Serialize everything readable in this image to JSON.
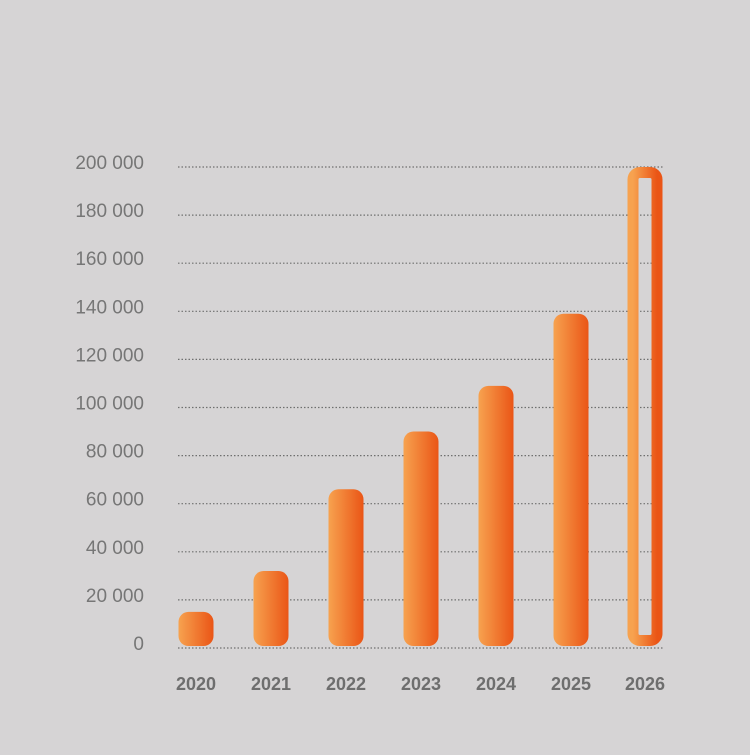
{
  "chart_data": {
    "type": "bar",
    "title": "",
    "xlabel": "",
    "ylabel": "",
    "categories": [
      "2020",
      "2021",
      "2022",
      "2023",
      "2024",
      "2025",
      "2026"
    ],
    "values": [
      15000,
      32000,
      66000,
      90000,
      109000,
      139000,
      200000
    ],
    "projected": [
      false,
      false,
      false,
      false,
      false,
      false,
      true
    ],
    "ylim": [
      0,
      200000
    ],
    "yticks": [
      0,
      20000,
      40000,
      60000,
      80000,
      100000,
      120000,
      140000,
      160000,
      180000,
      200000
    ],
    "ytick_labels": [
      "0",
      "20 000",
      "40 000",
      "60 000",
      "80 000",
      "100 000",
      "120 000",
      "140 000",
      "160 000",
      "180 000",
      "200 000"
    ],
    "grid": true,
    "legend": "none",
    "colors": {
      "background": "#d6d4d5",
      "bar_light": "#f7a24f",
      "bar_dark": "#ea5516",
      "grid": "#6f6f6f",
      "tick_text": "#767676"
    }
  }
}
